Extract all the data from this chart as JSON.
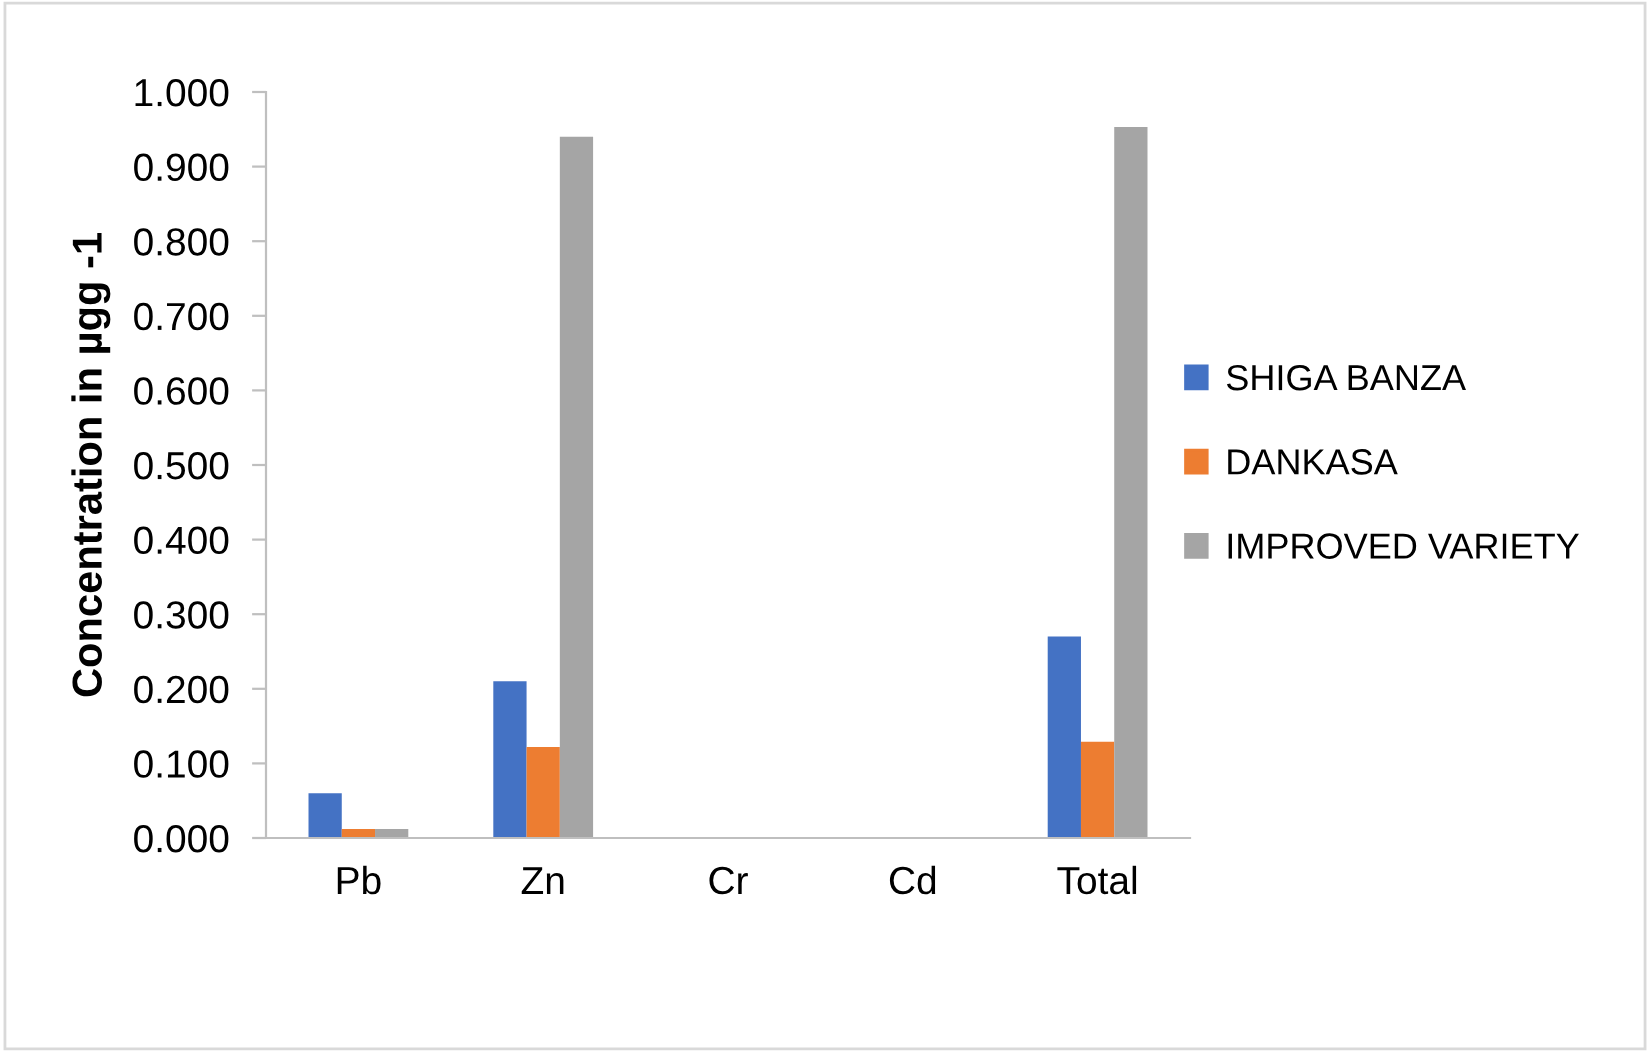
{
  "chart_data": {
    "type": "bar",
    "ylabel": "Concentration in µgg -1",
    "categories": [
      "Pb",
      "Zn",
      "Cr",
      "Cd",
      "Total"
    ],
    "series": [
      {
        "name": "SHIGA BANZA",
        "color": "#4472c4",
        "values": [
          0.06,
          0.21,
          0,
          0,
          0.27
        ]
      },
      {
        "name": "DANKASA",
        "color": "#ed7d31",
        "values": [
          0.012,
          0.122,
          0,
          0,
          0.129
        ]
      },
      {
        "name": "IMPROVED VARIETY",
        "color": "#a5a5a5",
        "values": [
          0.012,
          0.94,
          0,
          0,
          0.953
        ]
      }
    ],
    "ylim": [
      0,
      1
    ],
    "yticks": [
      {
        "value": 0,
        "label": "0.000"
      },
      {
        "value": 0.1,
        "label": "0.100"
      },
      {
        "value": 0.2,
        "label": "0.200"
      },
      {
        "value": 0.3,
        "label": "0.300"
      },
      {
        "value": 0.4,
        "label": "0.400"
      },
      {
        "value": 0.5,
        "label": "0.500"
      },
      {
        "value": 0.6,
        "label": "0.600"
      },
      {
        "value": 0.7,
        "label": "0.700"
      },
      {
        "value": 0.8,
        "label": "0.800"
      },
      {
        "value": 0.9,
        "label": "0.900"
      },
      {
        "value": 1,
        "label": "1.000"
      }
    ],
    "grid": false,
    "legend": "right"
  }
}
